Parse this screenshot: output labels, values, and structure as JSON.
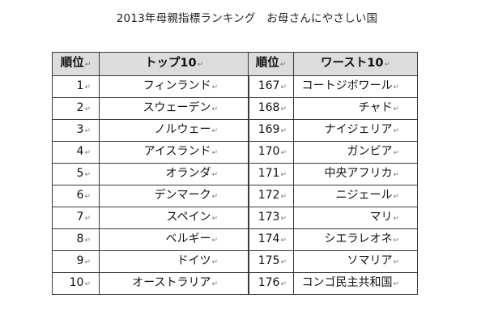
{
  "title": "2013年母親指標ランキング　お母さんにやさしい国",
  "headers": {
    "rank": "順位",
    "top10": "トップ10",
    "rank_right": "順位",
    "worst10": "ワースト10"
  },
  "return_mark": "↵",
  "rows": [
    {
      "rank": "1",
      "top": "フィンランド",
      "worst_rank": "167",
      "worst": "コートジボワール"
    },
    {
      "rank": "2",
      "top": "スウェーデン",
      "worst_rank": "168",
      "worst": "チャド"
    },
    {
      "rank": "3",
      "top": "ノルウェー",
      "worst_rank": "169",
      "worst": "ナイジェリア"
    },
    {
      "rank": "4",
      "top": "アイスランド",
      "worst_rank": "170",
      "worst": "ガンビア"
    },
    {
      "rank": "5",
      "top": "オランダ",
      "worst_rank": "171",
      "worst": "中央アフリカ"
    },
    {
      "rank": "6",
      "top": "デンマーク",
      "worst_rank": "172",
      "worst": "ニジェール"
    },
    {
      "rank": "7",
      "top": "スペイン",
      "worst_rank": "173",
      "worst": "マリ"
    },
    {
      "rank": "8",
      "top": "ベルギー",
      "worst_rank": "174",
      "worst": "シエラレオネ"
    },
    {
      "rank": "9",
      "top": "ドイツ",
      "worst_rank": "175",
      "worst": "ソマリア"
    },
    {
      "rank": "10",
      "top": "オーストラリア",
      "worst_rank": "176",
      "worst": "コンゴ民主共和国"
    }
  ]
}
